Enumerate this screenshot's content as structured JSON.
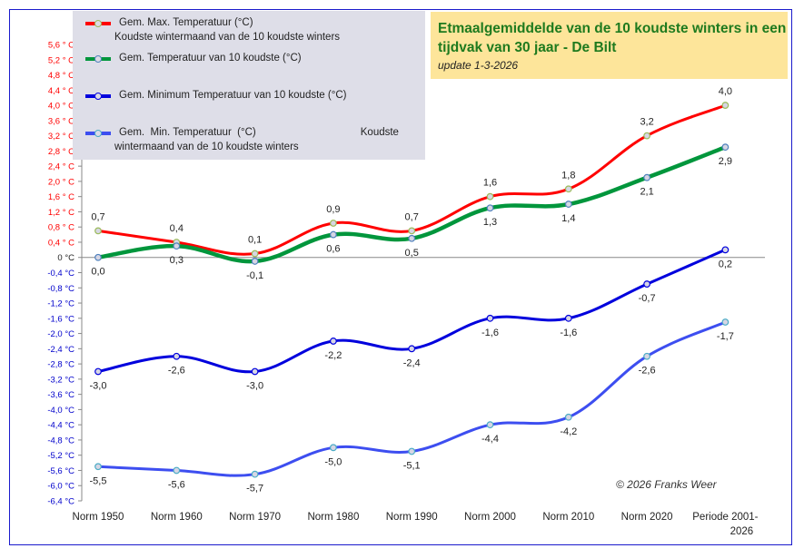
{
  "chart_data": {
    "type": "line",
    "title": "Etmaalgemiddelde van de 10 koudste winters in een tijdvak van 30 jaar - De Bilt",
    "subtitle": "update  1-3-2026",
    "copyright": "© 2026 Franks Weer",
    "categories": [
      "Norm  1950",
      "Norm  1960",
      "Norm  1970",
      "Norm  1980",
      "Norm  1990",
      "Norm  2000",
      "Norm  2010",
      "Norm  2020",
      "Periode  2001-2026"
    ],
    "category_lines": [
      [
        "Norm  1950"
      ],
      [
        "Norm  1960"
      ],
      [
        "Norm  1970"
      ],
      [
        "Norm  1980"
      ],
      [
        "Norm  1990"
      ],
      [
        "Norm  2000"
      ],
      [
        "Norm  2010"
      ],
      [
        "Norm  2020"
      ],
      [
        "Periode  2001-",
        "2026"
      ]
    ],
    "ylim": [
      -6.4,
      5.6
    ],
    "yticks": [
      "5,6 ° C",
      "5,2 ° C",
      "4,8 ° C",
      "4,4 ° C",
      "4,0 ° C",
      "3,6 ° C",
      "3,2 ° C",
      "2,8 ° C",
      "2,4 ° C",
      "2,0 ° C",
      "1,6 ° C",
      "1,2 ° C",
      "0,8 ° C",
      "0,4 ° C",
      "0 °C",
      "-0,4 °C",
      "-0,8 °C",
      "-1,2 °C",
      "-1,6 °C",
      "-2,0 °C",
      "-2,4 °C",
      "-2,8 °C",
      "-3,2 °C",
      "-3,6 °C",
      "-4,0 °C",
      "-4,4 °C",
      "-4,8 °C",
      "-5,2 °C",
      "-5,6 °C",
      "-6,0 °C",
      "-6,4 °C"
    ],
    "ytick_values": [
      5.6,
      5.2,
      4.8,
      4.4,
      4.0,
      3.6,
      3.2,
      2.8,
      2.4,
      2.0,
      1.6,
      1.2,
      0.8,
      0.4,
      0,
      -0.4,
      -0.8,
      -1.2,
      -1.6,
      -2.0,
      -2.4,
      -2.8,
      -3.2,
      -3.6,
      -4.0,
      -4.4,
      -4.8,
      -5.2,
      -5.6,
      -6.0,
      -6.4
    ],
    "ytick_colors": {
      "positive": "#ff0000",
      "zero": "#222222",
      "negative": "#0000cc"
    },
    "grid": false,
    "legend_position": "top-left",
    "series": [
      {
        "name": "Gem.  Max. Temperatuur  (°C)",
        "name_line2": "Koudste wintermaand van de 10 koudste winters",
        "color": "#ff0000",
        "marker_edge": "#9bbb59",
        "values": [
          0.7,
          0.4,
          0.1,
          0.9,
          0.7,
          1.6,
          1.8,
          3.2,
          4.0
        ],
        "labels": [
          "0,7",
          "0,4",
          "0,1",
          "0,9",
          "0,7",
          "1,6",
          "1,8",
          "3,2",
          "4,0"
        ],
        "label_pos": "above"
      },
      {
        "name": "Gem.  Temperatuur van 10 koudste (°C)",
        "name_line2": "",
        "color": "#00963c",
        "marker_edge": "#4f81bd",
        "values": [
          0.0,
          0.3,
          -0.1,
          0.6,
          0.5,
          1.3,
          1.4,
          2.1,
          2.9
        ],
        "labels": [
          "0,0",
          "0,3",
          "-0,1",
          "0,6",
          "0,5",
          "1,3",
          "1,4",
          "2,1",
          "2,9"
        ],
        "label_pos": "below"
      },
      {
        "name": "Gem.  Minimum Temperatuur van 10 koudste (°C)",
        "name_line2": "",
        "color": "#0000dd",
        "marker_edge": "#0000dd",
        "values": [
          -3.0,
          -2.6,
          -3.0,
          -2.2,
          -2.4,
          -1.6,
          -1.6,
          -0.7,
          0.2
        ],
        "labels": [
          "-3,0",
          "-2,6",
          "-3,0",
          "-2,2",
          "-2,4",
          "-1,6",
          "-1,6",
          "-0,7",
          "0,2"
        ],
        "label_pos": "below"
      },
      {
        "name": "Gem.  Min. Temperatuur  (°C)                                    Koudste",
        "name_line2": "wintermaand van de 10 koudste winters",
        "color": "#3d4ef0",
        "marker_edge": "#4bacc6",
        "values": [
          -5.5,
          -5.6,
          -5.7,
          -5.0,
          -5.1,
          -4.4,
          -4.2,
          -2.6,
          -1.7
        ],
        "labels": [
          "-5,5",
          "-5,6",
          "-5,7",
          "-5,0",
          "-5,1",
          "-4,4",
          "-4,2",
          "-2,6",
          "-1,7"
        ],
        "label_pos": "below"
      }
    ]
  }
}
